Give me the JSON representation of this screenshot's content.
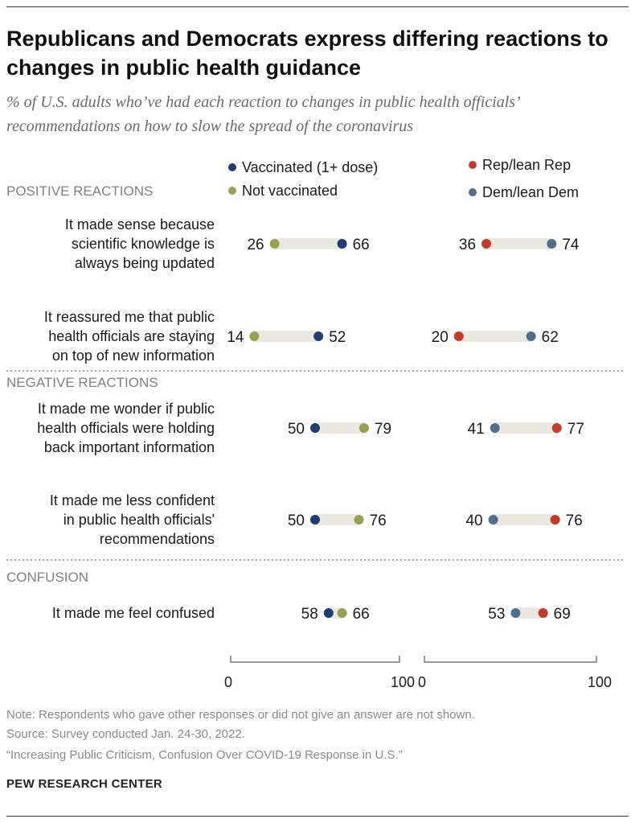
{
  "title": "Republicans and Democrats express differing reactions to changes in public health guidance",
  "subtitle": "% of U.S. adults who’ve had each reaction to changes in public health officials’ recommendations on how to slow the spread of the coronavirus",
  "colors": {
    "vaccinated": "#1f3c73",
    "not_vaccinated": "#98a150",
    "rep": "#c23b2b",
    "dem": "#4f6f8d",
    "bar": "#ebe8e2",
    "section": "#808080",
    "label": "#1a1a1a",
    "axis": "#9a9a9a"
  },
  "chart_data": {
    "type": "dot-plot",
    "title": "Republicans and Democrats express differing reactions to changes in public health guidance",
    "xlim": [
      0,
      100
    ],
    "ticks": [
      {
        "label": "0",
        "value": 0
      },
      {
        "label": "100",
        "value": 100
      }
    ],
    "panels": [
      {
        "name": "vaccination",
        "legend": [
          {
            "key": "vaccinated",
            "label": "Vaccinated (1+ dose)"
          },
          {
            "key": "not_vaccinated",
            "label": "Not vaccinated"
          }
        ]
      },
      {
        "name": "party",
        "legend": [
          {
            "key": "rep",
            "label": "Rep/lean Rep"
          },
          {
            "key": "dem",
            "label": "Dem/lean Dem"
          }
        ]
      }
    ],
    "sections": [
      {
        "title": "POSITIVE REACTIONS",
        "items": [
          {
            "label": [
              "It made sense because",
              "scientific knowledge is",
              "always being updated"
            ],
            "values": {
              "vaccinated": 66,
              "not_vaccinated": 26,
              "rep": 36,
              "dem": 74
            }
          },
          {
            "label": [
              "It reassured me that public",
              "health officials are staying",
              "on top of new information"
            ],
            "values": {
              "vaccinated": 52,
              "not_vaccinated": 14,
              "rep": 20,
              "dem": 62
            }
          }
        ]
      },
      {
        "title": "NEGATIVE REACTIONS",
        "items": [
          {
            "label": [
              "It made me wonder if public",
              "health officials were holding",
              "back important information"
            ],
            "values": {
              "vaccinated": 50,
              "not_vaccinated": 79,
              "rep": 77,
              "dem": 41
            }
          },
          {
            "label": [
              "It made me less confident",
              "in public health officials'",
              "recommendations"
            ],
            "values": {
              "vaccinated": 50,
              "not_vaccinated": 76,
              "rep": 76,
              "dem": 40
            }
          }
        ]
      },
      {
        "title": "CONFUSION",
        "items": [
          {
            "label": [
              "It made me feel confused"
            ],
            "values": {
              "vaccinated": 58,
              "not_vaccinated": 66,
              "rep": 69,
              "dem": 53
            }
          }
        ]
      }
    ]
  },
  "footer": {
    "note": "Note: Respondents who gave other responses or did not give an answer are not shown.",
    "source": "Source: Survey conducted Jan. 24-30, 2022.",
    "report": "“Increasing Public Criticism, Confusion Over COVID-19 Response in U.S.”",
    "org": "PEW RESEARCH CENTER"
  }
}
